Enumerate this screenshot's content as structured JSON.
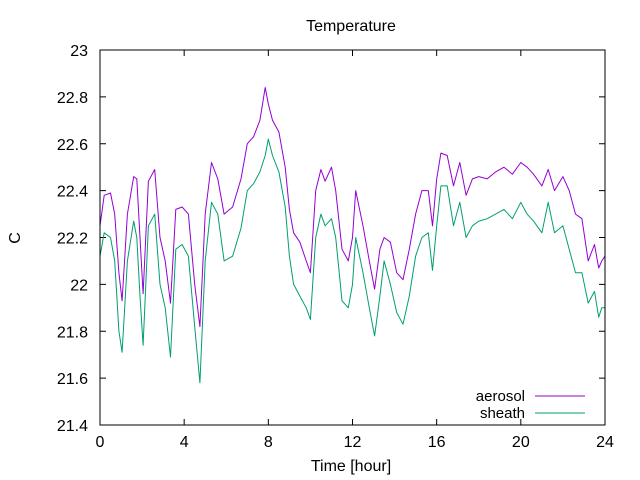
{
  "chart_data": {
    "type": "line",
    "title": "Temperature",
    "xlabel": "Time [hour]",
    "ylabel": "C",
    "xlim": [
      0,
      24
    ],
    "ylim": [
      21.4,
      23.0
    ],
    "xticks": [
      0,
      4,
      8,
      12,
      16,
      20,
      24
    ],
    "yticks": [
      21.4,
      21.6,
      21.8,
      22.0,
      22.2,
      22.4,
      22.6,
      22.8,
      23.0
    ],
    "xtick_labels": [
      "0",
      "4",
      "8",
      "12",
      "16",
      "20",
      "24"
    ],
    "ytick_labels": [
      "21.4",
      "21.6",
      "21.8",
      "22",
      "22.2",
      "22.4",
      "22.6",
      "22.8",
      "23"
    ],
    "grid": false,
    "legend_position": "bottom-right",
    "x": [
      0,
      0.2,
      0.5,
      0.7,
      0.9,
      1.05,
      1.3,
      1.6,
      1.75,
      1.9,
      2.05,
      2.3,
      2.6,
      2.85,
      3.1,
      3.35,
      3.6,
      3.9,
      4.2,
      4.5,
      4.75,
      5.0,
      5.3,
      5.6,
      5.9,
      6.3,
      6.7,
      7.0,
      7.3,
      7.6,
      7.85,
      8.0,
      8.2,
      8.5,
      8.8,
      9.0,
      9.2,
      9.5,
      9.8,
      10.0,
      10.25,
      10.5,
      10.7,
      11.0,
      11.2,
      11.5,
      11.8,
      12.0,
      12.15,
      12.5,
      12.8,
      13.05,
      13.3,
      13.5,
      13.8,
      14.1,
      14.4,
      14.7,
      15.0,
      15.3,
      15.6,
      15.8,
      16.0,
      16.2,
      16.5,
      16.8,
      17.1,
      17.4,
      17.7,
      18.0,
      18.4,
      18.8,
      19.2,
      19.6,
      20.0,
      20.3,
      20.6,
      21.0,
      21.3,
      21.6,
      22.0,
      22.3,
      22.6,
      22.9,
      23.2,
      23.5,
      23.7,
      23.85,
      24.0
    ],
    "series": [
      {
        "name": "aerosol",
        "color": "#9400d3",
        "values": [
          22.25,
          22.38,
          22.39,
          22.3,
          22.05,
          21.93,
          22.3,
          22.46,
          22.45,
          22.2,
          21.96,
          22.44,
          22.49,
          22.2,
          22.1,
          21.92,
          22.32,
          22.33,
          22.3,
          22.0,
          21.82,
          22.3,
          22.52,
          22.45,
          22.3,
          22.33,
          22.45,
          22.6,
          22.63,
          22.7,
          22.84,
          22.77,
          22.7,
          22.65,
          22.5,
          22.32,
          22.22,
          22.18,
          22.1,
          22.05,
          22.4,
          22.49,
          22.44,
          22.5,
          22.4,
          22.15,
          22.1,
          22.2,
          22.4,
          22.25,
          22.1,
          21.98,
          22.15,
          22.2,
          22.18,
          22.05,
          22.02,
          22.15,
          22.3,
          22.4,
          22.4,
          22.25,
          22.45,
          22.56,
          22.55,
          22.42,
          22.52,
          22.38,
          22.45,
          22.46,
          22.45,
          22.48,
          22.5,
          22.47,
          22.52,
          22.5,
          22.47,
          22.42,
          22.49,
          22.4,
          22.46,
          22.4,
          22.3,
          22.28,
          22.1,
          22.17,
          22.07,
          22.1,
          22.12
        ]
      },
      {
        "name": "sheath",
        "color": "#009e73",
        "values": [
          22.12,
          22.22,
          22.2,
          22.1,
          21.8,
          21.71,
          22.1,
          22.27,
          22.2,
          21.95,
          21.74,
          22.25,
          22.3,
          22.0,
          21.9,
          21.69,
          22.15,
          22.17,
          22.12,
          21.82,
          21.58,
          22.1,
          22.35,
          22.3,
          22.1,
          22.12,
          22.24,
          22.4,
          22.43,
          22.48,
          22.55,
          22.62,
          22.55,
          22.48,
          22.33,
          22.12,
          22.0,
          21.95,
          21.9,
          21.85,
          22.2,
          22.3,
          22.25,
          22.28,
          22.2,
          21.93,
          21.9,
          22.0,
          22.2,
          22.05,
          21.9,
          21.78,
          21.95,
          22.1,
          22.0,
          21.88,
          21.83,
          21.95,
          22.12,
          22.2,
          22.22,
          22.06,
          22.25,
          22.42,
          22.42,
          22.25,
          22.35,
          22.2,
          22.25,
          22.27,
          22.28,
          22.3,
          22.32,
          22.28,
          22.35,
          22.3,
          22.27,
          22.22,
          22.35,
          22.22,
          22.25,
          22.15,
          22.05,
          22.05,
          21.92,
          21.97,
          21.86,
          21.9,
          21.9
        ]
      }
    ]
  }
}
